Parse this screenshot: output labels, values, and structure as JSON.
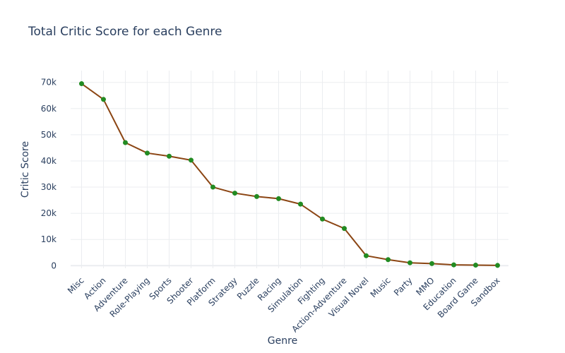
{
  "chart_data": {
    "type": "line",
    "title": "Total Critic Score for each Genre",
    "xlabel": "Genre",
    "ylabel": "Critic Score",
    "categories": [
      "Misc",
      "Action",
      "Adventure",
      "Role-Playing",
      "Sports",
      "Shooter",
      "Platform",
      "Strategy",
      "Puzzle",
      "Racing",
      "Simulation",
      "Fighting",
      "Action-Adventure",
      "Visual Novel",
      "Music",
      "Party",
      "MMO",
      "Education",
      "Board Game",
      "Sandbox"
    ],
    "values": [
      69500,
      63500,
      47000,
      43000,
      41800,
      40300,
      30000,
      27700,
      26400,
      25600,
      23500,
      17800,
      14200,
      3800,
      2300,
      1100,
      800,
      300,
      200,
      100
    ],
    "ylim": [
      -1000,
      74500
    ],
    "yticks": [
      0,
      10000,
      20000,
      30000,
      40000,
      50000,
      60000,
      70000
    ],
    "ytick_labels": [
      "0",
      "10k",
      "20k",
      "30k",
      "40k",
      "50k",
      "60k",
      "70k"
    ],
    "grid": true,
    "line_color": "#8B4513",
    "marker_color": "#228B22"
  }
}
